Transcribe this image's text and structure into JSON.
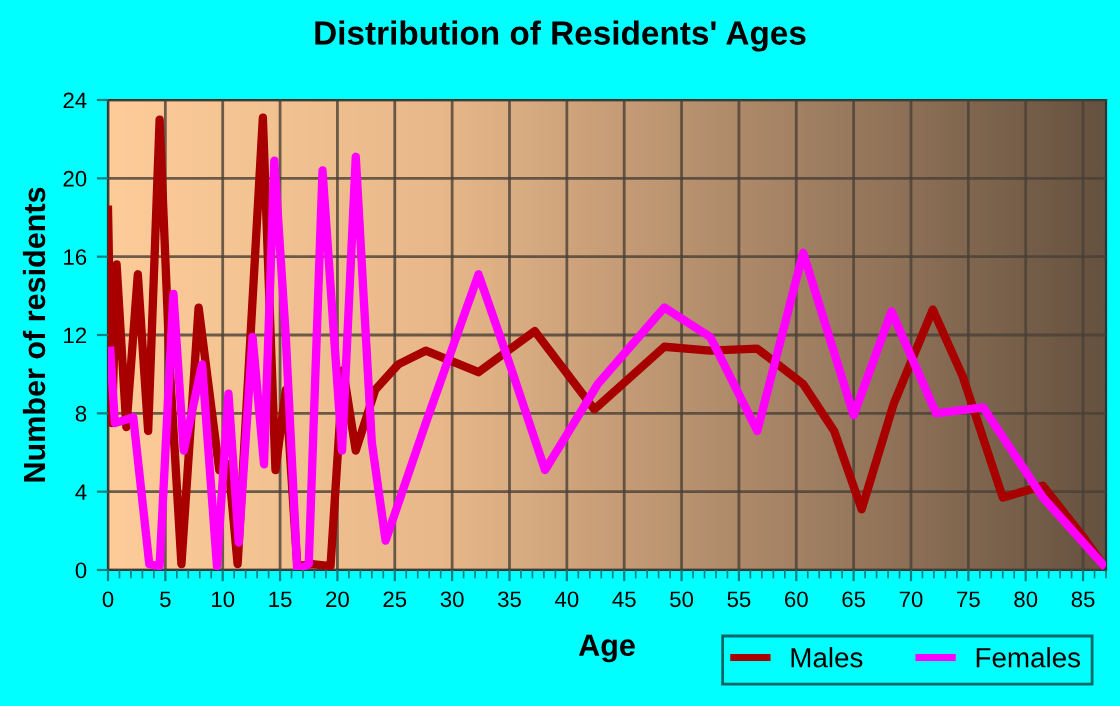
{
  "chart_data": {
    "type": "line",
    "title": "Distribution of Residents' Ages",
    "xlabel": "Age",
    "ylabel": "Number of residents",
    "xlim": [
      0,
      87
    ],
    "xticks": [
      0,
      5,
      10,
      15,
      20,
      25,
      30,
      35,
      40,
      45,
      50,
      55,
      60,
      65,
      70,
      75,
      80,
      85
    ],
    "ylim": [
      0,
      24
    ],
    "yticks": [
      0,
      4,
      8,
      12,
      16,
      20,
      24
    ],
    "grid": true,
    "legend": "bottom right",
    "marker": "none",
    "line_style": "solid",
    "series": [
      {
        "name": "Males",
        "color": "#a80000",
        "x": [
          0,
          0.35,
          0.75,
          1.6,
          2.6,
          3.5,
          4.5,
          5.4,
          6.4,
          7.9,
          9.7,
          10.5,
          11.3,
          13.5,
          14.6,
          15.5,
          16.5,
          17.8,
          19.4,
          20.5,
          21.6,
          23.3,
          25.3,
          27.7,
          32.3,
          37.2,
          42.4,
          48.5,
          52.5,
          56.6,
          60.6,
          63.3,
          65.7,
          68.5,
          71.9,
          74.5,
          78.0,
          81.5,
          85.0,
          86.7
        ],
        "values": [
          18.4,
          7.5,
          15.6,
          7.3,
          15.1,
          7.1,
          23.0,
          10.2,
          0.3,
          13.4,
          5.1,
          5.4,
          0.3,
          23.1,
          5.1,
          9.2,
          0.2,
          0.3,
          0.2,
          10.2,
          6.1,
          9.2,
          10.5,
          11.2,
          10.1,
          12.2,
          8.2,
          11.4,
          11.2,
          11.3,
          9.5,
          7.1,
          3.1,
          8.5,
          13.3,
          9.9,
          3.7,
          4.3,
          1.7,
          0.3
        ]
      },
      {
        "name": "Females",
        "color": "#ff00ff",
        "x": [
          0.2,
          0.6,
          2.2,
          3.6,
          4.5,
          5.7,
          6.6,
          8.2,
          9.5,
          10.5,
          11.4,
          12.6,
          13.6,
          14.5,
          15.5,
          16.5,
          17.5,
          18.7,
          20.4,
          21.6,
          23.0,
          24.2,
          27.7,
          32.3,
          35.2,
          38.1,
          42.7,
          48.5,
          52.5,
          56.6,
          60.6,
          65.0,
          68.3,
          72.2,
          76.3,
          81.5,
          86.7
        ],
        "values": [
          11.2,
          7.5,
          7.8,
          0.3,
          0.2,
          14.1,
          6.1,
          10.5,
          0.2,
          9.0,
          1.4,
          11.9,
          5.4,
          20.9,
          11.9,
          0,
          0.3,
          20.4,
          6.1,
          21.1,
          6.5,
          1.5,
          7.5,
          15.1,
          10.2,
          5.1,
          9.5,
          13.4,
          11.9,
          7.1,
          16.2,
          7.9,
          13.2,
          8.0,
          8.3,
          3.7,
          0.3
        ]
      }
    ]
  }
}
